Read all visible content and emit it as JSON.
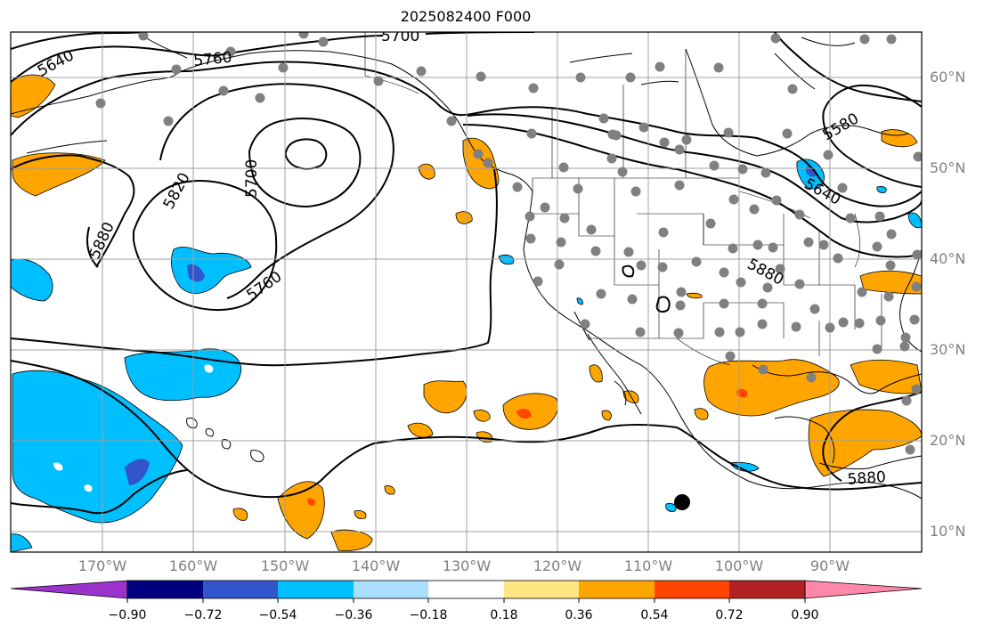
{
  "title": "2025082400 F000",
  "latitude_labels": [
    "60°N",
    "50°N",
    "40°N",
    "30°N",
    "20°N",
    "10°N"
  ],
  "longitude_labels": [
    "170°W",
    "160°W",
    "150°W",
    "140°W",
    "130°W",
    "120°W",
    "110°W",
    "100°W",
    "90°W"
  ],
  "colorbar": {
    "tick_labels": [
      "−0.90",
      "−0.72",
      "−0.54",
      "−0.36",
      "−0.18",
      "0.18",
      "0.36",
      "0.54",
      "0.72",
      "0.90"
    ],
    "colors": [
      "#9933cc",
      "#000080",
      "#3355cc",
      "#00bfff",
      "#aadfff",
      "#ffffff",
      "#ffe680",
      "#ffa500",
      "#ff4500",
      "#b22222",
      "#ff88aa"
    ]
  },
  "contour_labels": [
    "5640",
    "5760",
    "5700",
    "5700",
    "5820",
    "5880",
    "5760",
    "5580",
    "5640",
    "5880",
    "5880"
  ],
  "colors": {
    "positive_anomaly": "#ffa500",
    "strong_positive_anomaly": "#ff4500",
    "negative_anomaly": "#00bfff",
    "strong_negative_anomaly": "#3355cc",
    "station_marker": "#808080",
    "height_contour": "#000000",
    "grid": "#a0a0a0"
  }
}
